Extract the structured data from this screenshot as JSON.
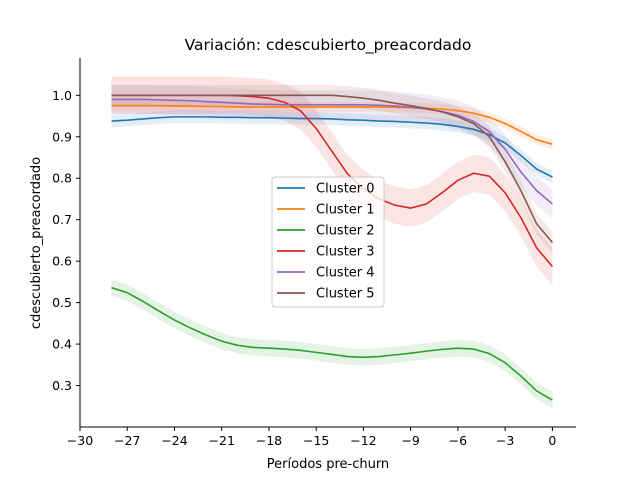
{
  "chart_data": {
    "type": "line",
    "title": "Variación: cdescubierto_preacordado",
    "xlabel": "Períodos pre-churn",
    "ylabel": "cdescubierto_preacordado",
    "xlim": [
      -30,
      1.5
    ],
    "ylim": [
      0.2,
      1.09
    ],
    "x_ticks": [
      -30,
      -27,
      -24,
      -21,
      -18,
      -15,
      -12,
      -9,
      -6,
      -3,
      0
    ],
    "x_tick_labels": [
      "−30",
      "−27",
      "−24",
      "−21",
      "−18",
      "−15",
      "−12",
      "−9",
      "−6",
      "−3",
      "0"
    ],
    "y_ticks": [
      0.3,
      0.4,
      0.5,
      0.6,
      0.7,
      0.8,
      0.9,
      1.0
    ],
    "y_tick_labels": [
      "0.3",
      "0.4",
      "0.5",
      "0.6",
      "0.7",
      "0.8",
      "0.9",
      "1.0"
    ],
    "grid": false,
    "legend_position": "center",
    "x": [
      -28,
      -27,
      -26,
      -25,
      -24,
      -23,
      -22,
      -21,
      -20,
      -19,
      -18,
      -17,
      -16,
      -15,
      -14,
      -13,
      -12,
      -11,
      -10,
      -9,
      -8,
      -7,
      -6,
      -5,
      -4,
      -3,
      -2,
      -1,
      0
    ],
    "series": [
      {
        "name": "Cluster 0",
        "color": "#1f77b4",
        "values": [
          0.938,
          0.94,
          0.943,
          0.946,
          0.948,
          0.948,
          0.948,
          0.947,
          0.947,
          0.946,
          0.946,
          0.945,
          0.944,
          0.944,
          0.943,
          0.941,
          0.94,
          0.938,
          0.937,
          0.935,
          0.933,
          0.93,
          0.925,
          0.918,
          0.905,
          0.885,
          0.855,
          0.822,
          0.803
        ],
        "band": 0.015
      },
      {
        "name": "Cluster 1",
        "color": "#ff7f0e",
        "values": [
          0.975,
          0.975,
          0.975,
          0.975,
          0.974,
          0.974,
          0.973,
          0.973,
          0.972,
          0.972,
          0.972,
          0.972,
          0.972,
          0.972,
          0.972,
          0.972,
          0.972,
          0.972,
          0.971,
          0.97,
          0.969,
          0.967,
          0.963,
          0.957,
          0.947,
          0.932,
          0.913,
          0.893,
          0.882
        ],
        "band": 0.012
      },
      {
        "name": "Cluster 2",
        "color": "#2ca02c",
        "values": [
          0.536,
          0.524,
          0.503,
          0.48,
          0.458,
          0.439,
          0.422,
          0.407,
          0.397,
          0.392,
          0.39,
          0.388,
          0.385,
          0.38,
          0.375,
          0.37,
          0.368,
          0.37,
          0.374,
          0.378,
          0.383,
          0.387,
          0.39,
          0.388,
          0.377,
          0.355,
          0.323,
          0.287,
          0.265
        ],
        "band": 0.02
      },
      {
        "name": "Cluster 3",
        "color": "#d62728",
        "values": [
          1.0,
          1.0,
          1.0,
          1.0,
          1.0,
          1.0,
          1.0,
          1.0,
          0.999,
          0.997,
          0.993,
          0.983,
          0.963,
          0.92,
          0.865,
          0.81,
          0.775,
          0.75,
          0.735,
          0.728,
          0.738,
          0.765,
          0.795,
          0.812,
          0.805,
          0.765,
          0.705,
          0.632,
          0.587
        ],
        "band": 0.045
      },
      {
        "name": "Cluster 4",
        "color": "#9467bd",
        "values": [
          0.99,
          0.99,
          0.99,
          0.989,
          0.988,
          0.987,
          0.985,
          0.983,
          0.981,
          0.979,
          0.978,
          0.977,
          0.977,
          0.977,
          0.977,
          0.977,
          0.977,
          0.976,
          0.974,
          0.971,
          0.967,
          0.961,
          0.952,
          0.937,
          0.912,
          0.87,
          0.815,
          0.77,
          0.738
        ],
        "band": 0.035
      },
      {
        "name": "Cluster 5",
        "color": "#8c564b",
        "values": [
          1.0,
          1.0,
          1.0,
          1.0,
          1.0,
          1.0,
          1.0,
          1.0,
          1.0,
          1.0,
          1.0,
          1.0,
          1.0,
          1.0,
          1.0,
          0.997,
          0.993,
          0.988,
          0.981,
          0.975,
          0.968,
          0.96,
          0.948,
          0.932,
          0.9,
          0.84,
          0.77,
          0.69,
          0.645
        ],
        "band": 0.025
      }
    ]
  }
}
